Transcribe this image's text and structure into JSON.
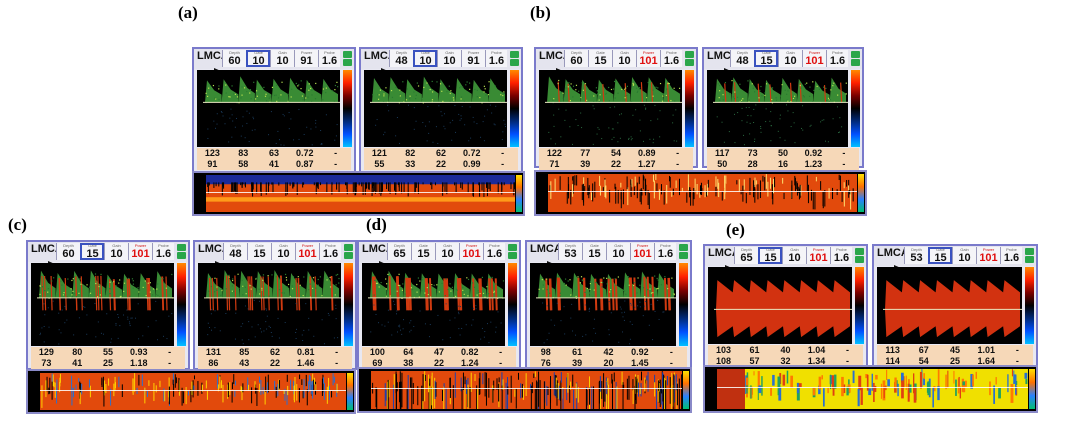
{
  "colors": {
    "border": "#7a7acb",
    "stats_bg": "#f6d8b8",
    "label_red": "#e01010",
    "button_green": "#2aa64a"
  },
  "panels": [
    {
      "label": "(a)",
      "cards": [
        {
          "vessel": "LMCA",
          "cells": [
            {
              "tiny": "Depth",
              "val": "60"
            },
            {
              "tiny": "Gate",
              "val": "10",
              "boxed": true
            },
            {
              "tiny": "Gain",
              "val": "10"
            },
            {
              "tiny": "Power",
              "val": "91"
            },
            {
              "tiny": "Probe",
              "val": "1.6"
            }
          ],
          "stats": [
            [
              "123",
              "83",
              "63",
              "0.72",
              "-"
            ],
            [
              "91",
              "58",
              "41",
              "0.87",
              "-"
            ]
          ]
        },
        {
          "vessel": "LMCA",
          "cells": [
            {
              "tiny": "Depth",
              "val": "48"
            },
            {
              "tiny": "Gate",
              "val": "10",
              "boxed": true
            },
            {
              "tiny": "Gain",
              "val": "10"
            },
            {
              "tiny": "Power",
              "val": "91"
            },
            {
              "tiny": "Probe",
              "val": "1.6"
            }
          ],
          "stats": [
            [
              "121",
              "82",
              "62",
              "0.72",
              "-"
            ],
            [
              "55",
              "33",
              "22",
              "0.99",
              "-"
            ]
          ]
        }
      ]
    },
    {
      "label": "(b)",
      "cards": [
        {
          "vessel": "LMCA",
          "cells": [
            {
              "tiny": "Depth",
              "val": "60"
            },
            {
              "tiny": "Gate",
              "val": "15"
            },
            {
              "tiny": "Gain",
              "val": "10"
            },
            {
              "tiny": "Power",
              "val": "101",
              "red": true
            },
            {
              "tiny": "Probe",
              "val": "1.6"
            }
          ],
          "stats": [
            [
              "122",
              "77",
              "54",
              "0.89",
              "-"
            ],
            [
              "71",
              "39",
              "22",
              "1.27",
              "-"
            ]
          ]
        },
        {
          "vessel": "LMCA",
          "cells": [
            {
              "tiny": "Depth",
              "val": "48"
            },
            {
              "tiny": "Gate",
              "val": "15",
              "boxed": true
            },
            {
              "tiny": "Gain",
              "val": "10"
            },
            {
              "tiny": "Power",
              "val": "101",
              "red": true
            },
            {
              "tiny": "Probe",
              "val": "1.6"
            }
          ],
          "stats": [
            [
              "117",
              "73",
              "50",
              "0.92",
              "-"
            ],
            [
              "50",
              "28",
              "16",
              "1.23",
              "-"
            ]
          ]
        }
      ]
    },
    {
      "label": "(c)",
      "cards": [
        {
          "vessel": "LMCA",
          "cells": [
            {
              "tiny": "Depth",
              "val": "60"
            },
            {
              "tiny": "Gate",
              "val": "15",
              "boxed": true
            },
            {
              "tiny": "Gain",
              "val": "10"
            },
            {
              "tiny": "Power",
              "val": "101",
              "red": true
            },
            {
              "tiny": "Probe",
              "val": "1.6"
            }
          ],
          "stats": [
            [
              "129",
              "80",
              "55",
              "0.93",
              "-"
            ],
            [
              "73",
              "41",
              "25",
              "1.18",
              "-"
            ]
          ]
        },
        {
          "vessel": "LMCA",
          "cells": [
            {
              "tiny": "Depth",
              "val": "48"
            },
            {
              "tiny": "Gate",
              "val": "15"
            },
            {
              "tiny": "Gain",
              "val": "10"
            },
            {
              "tiny": "Power",
              "val": "101",
              "red": true
            },
            {
              "tiny": "Probe",
              "val": "1.6"
            }
          ],
          "stats": [
            [
              "131",
              "85",
              "62",
              "0.81",
              "-"
            ],
            [
              "86",
              "43",
              "22",
              "1.46",
              "-"
            ]
          ]
        }
      ]
    },
    {
      "label": "(d)",
      "cards": [
        {
          "vessel": "LMCA",
          "cells": [
            {
              "tiny": "Depth",
              "val": "65"
            },
            {
              "tiny": "Gate",
              "val": "15"
            },
            {
              "tiny": "Gain",
              "val": "10"
            },
            {
              "tiny": "Power",
              "val": "101",
              "red": true
            },
            {
              "tiny": "Probe",
              "val": "1.6"
            }
          ],
          "stats": [
            [
              "100",
              "64",
              "47",
              "0.82",
              "-"
            ],
            [
              "69",
              "38",
              "22",
              "1.24",
              "-"
            ]
          ]
        },
        {
          "vessel": "LMCA",
          "cells": [
            {
              "tiny": "Depth",
              "val": "53"
            },
            {
              "tiny": "Gate",
              "val": "15"
            },
            {
              "tiny": "Gain",
              "val": "10"
            },
            {
              "tiny": "Power",
              "val": "101",
              "red": true
            },
            {
              "tiny": "Probe",
              "val": "1.6"
            }
          ],
          "stats": [
            [
              "98",
              "61",
              "42",
              "0.92",
              "-"
            ],
            [
              "76",
              "39",
              "20",
              "1.45",
              "-"
            ]
          ]
        }
      ]
    },
    {
      "label": "(e)",
      "cards": [
        {
          "vessel": "LMCA",
          "cells": [
            {
              "tiny": "Depth",
              "val": "65"
            },
            {
              "tiny": "Gate",
              "val": "15",
              "boxed": true
            },
            {
              "tiny": "Gain",
              "val": "10"
            },
            {
              "tiny": "Power",
              "val": "101",
              "red": true
            },
            {
              "tiny": "Probe",
              "val": "1.6"
            }
          ],
          "stats": [
            [
              "103",
              "61",
              "40",
              "1.04",
              "-"
            ],
            [
              "108",
              "57",
              "32",
              "1.34",
              "-"
            ]
          ]
        },
        {
          "vessel": "LMCA",
          "cells": [
            {
              "tiny": "Depth",
              "val": "53"
            },
            {
              "tiny": "Gate",
              "val": "15",
              "boxed": true
            },
            {
              "tiny": "Gain",
              "val": "10"
            },
            {
              "tiny": "Power",
              "val": "101",
              "red": true
            },
            {
              "tiny": "Probe",
              "val": "1.6"
            }
          ],
          "stats": [
            [
              "113",
              "67",
              "45",
              "1.01",
              "-"
            ],
            [
              "114",
              "54",
              "25",
              "1.64",
              "-"
            ]
          ]
        }
      ]
    }
  ]
}
